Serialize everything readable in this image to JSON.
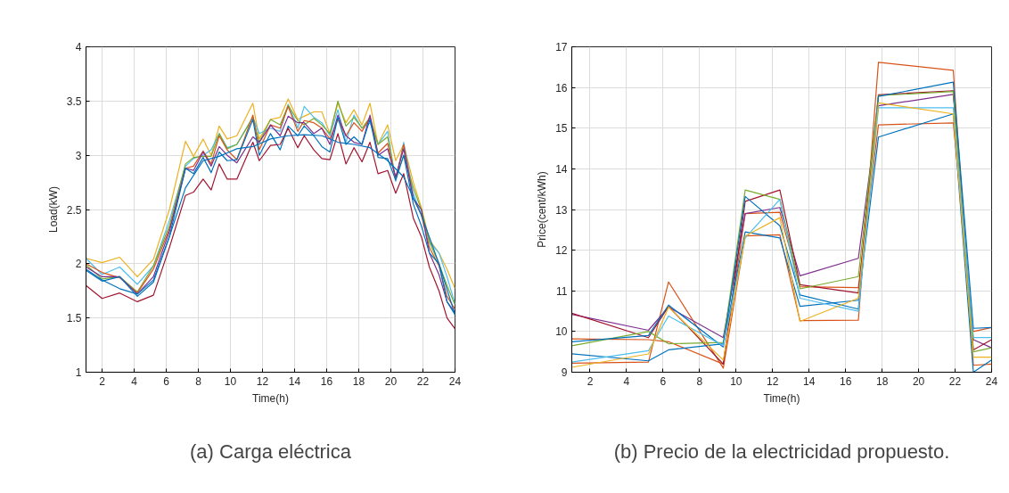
{
  "chart_data": [
    {
      "type": "line",
      "xlabel": "Time(h)",
      "ylabel": "Load(kW)",
      "xlim": [
        1,
        24
      ],
      "ylim": [
        1,
        4
      ],
      "xticks": [
        2,
        4,
        6,
        8,
        10,
        12,
        14,
        16,
        18,
        20,
        22,
        24
      ],
      "yticks": [
        1,
        1.5,
        2,
        2.5,
        3,
        3.5,
        4
      ],
      "grid": true,
      "annotations": [
        "(a) Carga eléctrica"
      ],
      "x": [
        1,
        2,
        3.1,
        4.2,
        5.2,
        6.2,
        7.2,
        7.7,
        8.3,
        8.8,
        9.3,
        9.8,
        10.4,
        11.4,
        11.8,
        12.5,
        13.1,
        13.6,
        14.2,
        14.6,
        15.2,
        15.7,
        16.2,
        16.7,
        17.2,
        17.7,
        18.2,
        18.7,
        19.2,
        19.8,
        20.3,
        20.8,
        21.4,
        21.9,
        22.4,
        23,
        23.5,
        24
      ],
      "series": [
        {
          "color": "#edb120",
          "values": [
            2.05,
            2.01,
            2.06,
            1.88,
            2.04,
            2.5,
            3.13,
            2.99,
            3.15,
            3.0,
            3.27,
            3.15,
            3.18,
            3.48,
            3.15,
            3.33,
            3.35,
            3.52,
            3.33,
            3.36,
            3.4,
            3.4,
            3.2,
            3.48,
            3.3,
            3.42,
            3.28,
            3.48,
            3.1,
            3.28,
            2.95,
            3.1,
            2.75,
            2.52,
            2.22,
            2.1,
            1.95,
            1.77
          ]
        },
        {
          "color": "#4dbeee",
          "values": [
            2.05,
            1.9,
            1.97,
            1.81,
            1.98,
            2.4,
            2.9,
            2.97,
            3.0,
            3.05,
            3.2,
            3.07,
            3.1,
            3.35,
            3.2,
            3.25,
            3.22,
            3.47,
            3.25,
            3.45,
            3.35,
            3.3,
            3.18,
            3.42,
            3.12,
            3.37,
            3.25,
            3.3,
            3.1,
            3.22,
            2.76,
            3.12,
            2.65,
            2.45,
            2.2,
            2.1,
            1.88,
            1.63
          ]
        },
        {
          "color": "#77ac30",
          "values": [
            1.99,
            1.86,
            1.88,
            1.74,
            1.98,
            2.35,
            2.92,
            2.98,
            2.99,
            2.99,
            3.2,
            3.06,
            3.1,
            3.35,
            3.12,
            3.33,
            3.28,
            3.46,
            3.32,
            3.28,
            3.34,
            3.28,
            3.2,
            3.5,
            3.27,
            3.35,
            3.25,
            3.35,
            3.1,
            3.17,
            2.78,
            3.0,
            2.7,
            2.5,
            2.2,
            2.0,
            1.8,
            1.62
          ]
        },
        {
          "color": "#d95319",
          "values": [
            2.0,
            1.92,
            1.87,
            1.73,
            1.95,
            2.32,
            2.88,
            2.9,
            3.04,
            2.92,
            3.18,
            3.05,
            2.96,
            3.37,
            3.05,
            3.28,
            3.25,
            3.45,
            3.22,
            3.32,
            3.3,
            3.25,
            3.15,
            3.33,
            3.18,
            3.3,
            3.22,
            3.35,
            3.02,
            3.11,
            2.78,
            3.1,
            2.6,
            2.45,
            2.15,
            1.98,
            1.7,
            1.58
          ]
        },
        {
          "color": "#7e2f8e",
          "values": [
            1.97,
            1.88,
            1.88,
            1.72,
            1.88,
            2.3,
            2.88,
            2.86,
            3.03,
            2.9,
            3.08,
            3.0,
            2.93,
            3.17,
            3.12,
            3.28,
            3.18,
            3.36,
            3.3,
            3.3,
            3.2,
            3.25,
            3.1,
            3.37,
            3.18,
            3.12,
            3.1,
            3.37,
            3.0,
            3.06,
            2.8,
            3.06,
            2.6,
            2.5,
            2.1,
            1.9,
            1.65,
            1.55
          ]
        },
        {
          "color": "#0072bd",
          "values": [
            1.94,
            1.84,
            1.88,
            1.7,
            1.83,
            2.25,
            2.88,
            2.83,
            2.98,
            2.84,
            3.03,
            2.95,
            2.96,
            3.33,
            3.0,
            3.2,
            3.05,
            3.27,
            3.18,
            3.27,
            3.18,
            3.08,
            3.03,
            3.35,
            3.1,
            3.17,
            3.1,
            3.33,
            2.98,
            2.97,
            2.77,
            3.0,
            2.55,
            2.35,
            2.1,
            2.0,
            1.65,
            1.53
          ]
        },
        {
          "color": "#a2142f",
          "values": [
            1.8,
            1.68,
            1.73,
            1.65,
            1.71,
            2.15,
            2.63,
            2.66,
            2.78,
            2.68,
            2.92,
            2.78,
            2.78,
            3.12,
            2.95,
            3.09,
            3.1,
            3.25,
            3.07,
            3.18,
            3.05,
            2.97,
            2.96,
            3.2,
            2.92,
            3.07,
            2.94,
            3.12,
            2.83,
            2.86,
            2.65,
            2.83,
            2.42,
            2.25,
            1.97,
            1.75,
            1.5,
            1.4
          ]
        },
        {
          "color": "#0072bd",
          "x": [
            1,
            2,
            3.1,
            4.2,
            5.2,
            6.2,
            7.2,
            8.3,
            9.3,
            10.4,
            11.4,
            12.5,
            13.6,
            14.6,
            15.7,
            16.7,
            17.7,
            18.7,
            19.8,
            20.8,
            21.9,
            23,
            24
          ],
          "values": [
            1.95,
            1.85,
            1.77,
            1.72,
            1.85,
            2.25,
            2.7,
            2.95,
            2.99,
            3.06,
            3.08,
            3.15,
            3.18,
            3.19,
            3.18,
            3.12,
            3.1,
            3.07,
            2.95,
            2.8,
            2.45,
            2.0,
            1.53
          ]
        }
      ]
    },
    {
      "type": "line",
      "xlabel": "Time(h)",
      "ylabel": "Price(cent/kWh)",
      "xlim": [
        1,
        24
      ],
      "ylim": [
        9,
        17
      ],
      "xticks": [
        2,
        4,
        6,
        8,
        10,
        12,
        14,
        16,
        18,
        20,
        22,
        24
      ],
      "yticks": [
        9,
        10,
        11,
        12,
        13,
        14,
        15,
        16,
        17
      ],
      "grid": true,
      "annotations": [
        "(b) Precio de la electricidad propuesto."
      ],
      "x": [
        1,
        5.2,
        6.3,
        9.3,
        10.5,
        12.4,
        13.5,
        16.7,
        17.8,
        21.9,
        23,
        24
      ],
      "series": [
        {
          "color": "#d95319",
          "values": [
            9.22,
            9.25,
            11.22,
            9.1,
            12.35,
            12.38,
            10.27,
            10.28,
            16.62,
            16.42,
            9.17,
            9.2
          ]
        },
        {
          "color": "#d95319",
          "values": [
            9.82,
            9.8,
            9.75,
            9.2,
            12.9,
            12.93,
            11.1,
            11.08,
            15.08,
            15.13,
            10.0,
            10.1
          ]
        },
        {
          "color": "#7e2f8e",
          "values": [
            10.42,
            10.03,
            10.6,
            9.85,
            12.9,
            13.05,
            11.37,
            11.8,
            15.55,
            15.83,
            9.8,
            9.6
          ]
        },
        {
          "color": "#a2142f",
          "values": [
            10.45,
            9.85,
            10.62,
            9.2,
            13.2,
            13.48,
            11.15,
            10.95,
            15.82,
            15.92,
            9.55,
            9.8
          ]
        },
        {
          "color": "#77ac30",
          "values": [
            9.65,
            10.0,
            9.7,
            9.73,
            13.48,
            13.25,
            11.05,
            11.35,
            15.8,
            15.9,
            9.5,
            9.6
          ]
        },
        {
          "color": "#0072bd",
          "values": [
            9.75,
            9.9,
            10.65,
            9.62,
            13.32,
            12.6,
            10.9,
            10.55,
            15.78,
            16.13,
            10.08,
            10.1
          ]
        },
        {
          "color": "#0072bd",
          "values": [
            9.45,
            9.28,
            9.55,
            9.7,
            12.45,
            12.3,
            10.62,
            10.77,
            14.78,
            15.35,
            9.0,
            9.3
          ]
        },
        {
          "color": "#4dbeee",
          "values": [
            9.25,
            9.53,
            10.38,
            9.65,
            12.3,
            13.25,
            10.82,
            10.5,
            15.5,
            15.5,
            9.85,
            9.85
          ]
        },
        {
          "color": "#edb120",
          "values": [
            9.12,
            9.45,
            10.6,
            9.3,
            12.35,
            12.8,
            10.25,
            10.82,
            15.62,
            15.35,
            9.37,
            9.37
          ]
        }
      ]
    }
  ]
}
